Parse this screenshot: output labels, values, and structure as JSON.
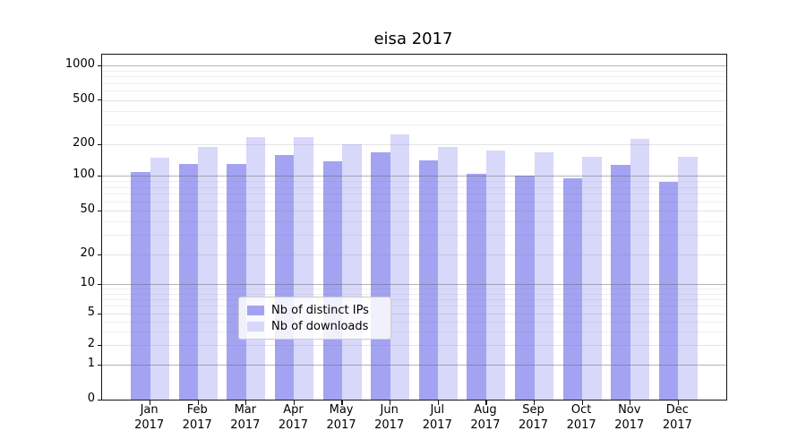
{
  "chart_data": {
    "type": "bar",
    "title": "eisa 2017",
    "months": [
      "Jan",
      "Feb",
      "Mar",
      "Apr",
      "May",
      "Jun",
      "Jul",
      "Aug",
      "Sep",
      "Oct",
      "Nov",
      "Dec"
    ],
    "year": "2017",
    "categories": [
      "Jan 2017",
      "Feb 2017",
      "Mar 2017",
      "Apr 2017",
      "May 2017",
      "Jun 2017",
      "Jul 2017",
      "Aug 2017",
      "Sep 2017",
      "Oct 2017",
      "Nov 2017",
      "Dec 2017"
    ],
    "series": [
      {
        "name": "Nb of distinct IPs",
        "color": "#a3a3f2",
        "values": [
          108,
          130,
          129,
          157,
          137,
          166,
          139,
          105,
          100,
          95,
          128,
          88
        ]
      },
      {
        "name": "Nb of downloads",
        "color": "#d8d8fa",
        "values": [
          148,
          187,
          233,
          232,
          199,
          245,
          188,
          174,
          168,
          151,
          222,
          151
        ]
      }
    ],
    "yscale": "symlog",
    "y_ticks": [
      0,
      1,
      2,
      5,
      10,
      20,
      50,
      100,
      200,
      500,
      1000
    ],
    "y_minor_ticks": [
      3,
      4,
      6,
      7,
      8,
      9,
      30,
      40,
      60,
      70,
      80,
      90,
      300,
      400,
      600,
      700,
      800,
      900
    ],
    "ylim": [
      0,
      1000
    ],
    "grid": true,
    "legend_position": "lower center"
  }
}
